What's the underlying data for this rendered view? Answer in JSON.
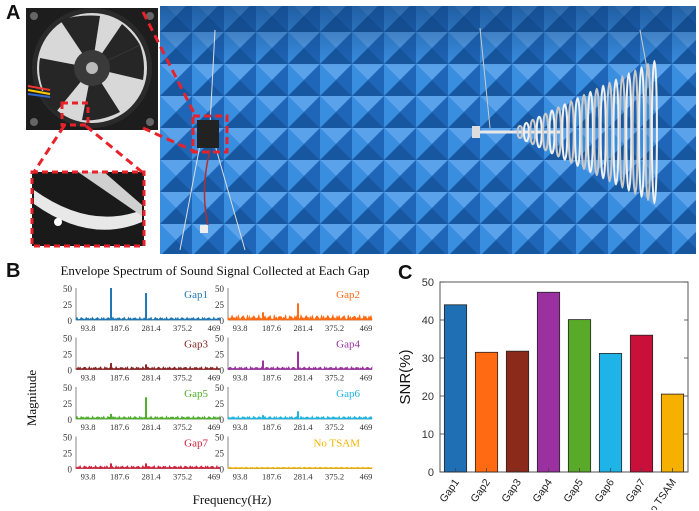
{
  "panels": {
    "a": "A",
    "b": "B",
    "c": "C"
  },
  "spectra": {
    "title": "Envelope Spectrum of Sound Signal Collected at Each Gap",
    "ylabel": "Magnitude",
    "xlabel": "Frequency(Hz)",
    "xticks": [
      "93.8",
      "187.6",
      "281.4",
      "375.2",
      "469"
    ],
    "yticks": [
      "50",
      "25",
      "0"
    ],
    "subplots": [
      {
        "label": "Gap1",
        "color": "#1f77b4",
        "peaks": [
          50,
          42
        ]
      },
      {
        "label": "Gap2",
        "color": "#ff6a13",
        "peaks": [
          12,
          26
        ]
      },
      {
        "label": "Gap3",
        "color": "#8b2323",
        "peaks": [
          10,
          8
        ]
      },
      {
        "label": "Gap4",
        "color": "#9b30a0",
        "peaks": [
          14,
          28
        ]
      },
      {
        "label": "Gap5",
        "color": "#4daf2a",
        "peaks": [
          8,
          34
        ]
      },
      {
        "label": "Gap6",
        "color": "#1fb4e0",
        "peaks": [
          6,
          12
        ]
      },
      {
        "label": "Gap7",
        "color": "#d0203a",
        "peaks": [
          8,
          8
        ]
      },
      {
        "label": "No TSAM",
        "color": "#f5b400",
        "peaks": [
          0,
          0
        ]
      }
    ]
  },
  "chart_data": {
    "type": "bar",
    "title": "",
    "xlabel": "",
    "ylabel": "SNR(%)",
    "ylim": [
      0,
      50
    ],
    "yticks": [
      "0",
      "10",
      "20",
      "30",
      "40",
      "50"
    ],
    "categories": [
      "Gap1",
      "Gap2",
      "Gap3",
      "Gap4",
      "Gap5",
      "Gap6",
      "Gap7",
      "no TSAM"
    ],
    "values": [
      44,
      31.5,
      31.8,
      47.3,
      40.1,
      31.2,
      36,
      20.5
    ],
    "colors": [
      "#1f6fb5",
      "#ff6a13",
      "#8b2a1a",
      "#9b30a0",
      "#5aaa2a",
      "#1fb4e8",
      "#c8103a",
      "#f5b000"
    ],
    "grid": false
  }
}
